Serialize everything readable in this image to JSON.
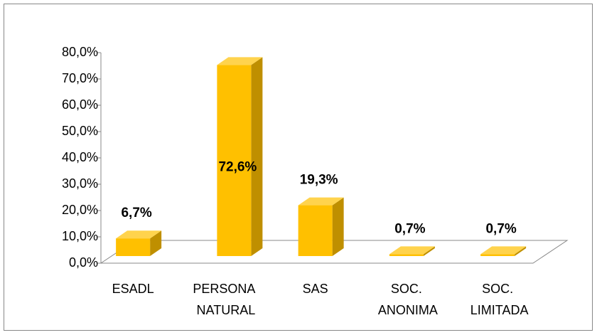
{
  "chart_data": {
    "type": "bar3d",
    "categories": [
      "ESADL",
      "PERSONA NATURAL",
      "SAS",
      "SOC. ANONIMA",
      "SOC. LIMITADA"
    ],
    "values": [
      6.7,
      72.6,
      19.3,
      0.7,
      0.7
    ],
    "value_labels": [
      "6,7%",
      "72,6%",
      "19,3%",
      "0,7%",
      "0,7%"
    ],
    "color": "#ffc000",
    "ylim": [
      0,
      80
    ],
    "yticks": [
      {
        "value": 0,
        "label": "0,0%"
      },
      {
        "value": 10,
        "label": "10,0%"
      },
      {
        "value": 20,
        "label": "20,0%"
      },
      {
        "value": 30,
        "label": "30,0%"
      },
      {
        "value": 40,
        "label": "40,0%"
      },
      {
        "value": 50,
        "label": "50,0%"
      },
      {
        "value": 60,
        "label": "60,0%"
      },
      {
        "value": 70,
        "label": "70,0%"
      },
      {
        "value": 80,
        "label": "80,0%"
      }
    ]
  }
}
